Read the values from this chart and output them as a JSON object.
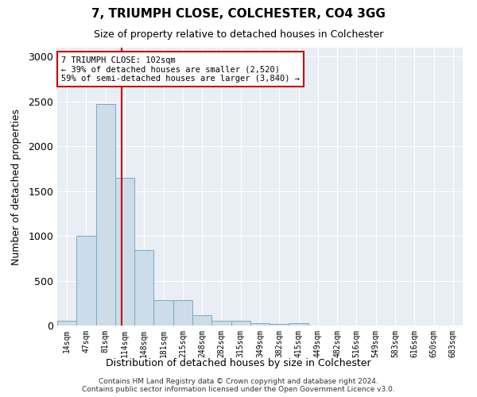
{
  "title": "7, TRIUMPH CLOSE, COLCHESTER, CO4 3GG",
  "subtitle": "Size of property relative to detached houses in Colchester",
  "xlabel": "Distribution of detached houses by size in Colchester",
  "ylabel": "Number of detached properties",
  "bar_color": "#ccdce8",
  "bar_edge_color": "#7aaac8",
  "categories": [
    "14sqm",
    "47sqm",
    "81sqm",
    "114sqm",
    "148sqm",
    "181sqm",
    "215sqm",
    "248sqm",
    "282sqm",
    "315sqm",
    "349sqm",
    "382sqm",
    "415sqm",
    "449sqm",
    "482sqm",
    "516sqm",
    "549sqm",
    "583sqm",
    "616sqm",
    "650sqm",
    "683sqm"
  ],
  "values": [
    55,
    1000,
    2470,
    1650,
    840,
    285,
    285,
    115,
    50,
    50,
    30,
    20,
    25,
    0,
    0,
    0,
    0,
    0,
    0,
    0,
    0
  ],
  "vline_x_index": 2.82,
  "annotation_text": "7 TRIUMPH CLOSE: 102sqm\n← 39% of detached houses are smaller (2,520)\n59% of semi-detached houses are larger (3,840) →",
  "annotation_box_color": "#ffffff",
  "annotation_box_edge": "#cc0000",
  "vline_color": "#cc0000",
  "ylim": [
    0,
    3100
  ],
  "yticks": [
    0,
    500,
    1000,
    1500,
    2000,
    2500,
    3000
  ],
  "bg_color": "#e8eef4",
  "grid_color": "#ffffff",
  "footer1": "Contains HM Land Registry data © Crown copyright and database right 2024.",
  "footer2": "Contains public sector information licensed under the Open Government Licence v3.0."
}
